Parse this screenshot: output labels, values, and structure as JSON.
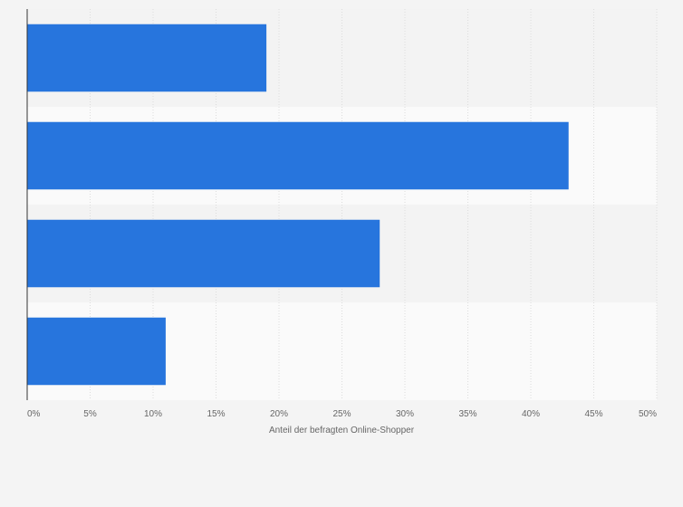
{
  "chart_data": {
    "type": "bar",
    "orientation": "horizontal",
    "categories": [
      "",
      "",
      "",
      ""
    ],
    "values": [
      19,
      43,
      28,
      11
    ],
    "xlabel": "Anteil der befragten Online-Shopper",
    "ylabel": "",
    "xlim": [
      0,
      50
    ],
    "x_ticks": [
      0,
      5,
      10,
      15,
      20,
      25,
      30,
      35,
      40,
      45,
      50
    ],
    "x_tick_labels": [
      "0%",
      "5%",
      "10%",
      "15%",
      "20%",
      "25%",
      "30%",
      "35%",
      "40%",
      "45%",
      "50%"
    ],
    "grid": true,
    "legend": "none",
    "bar_color": "#2775dd",
    "band_colors": [
      "#f3f3f3",
      "#fafafa"
    ]
  }
}
